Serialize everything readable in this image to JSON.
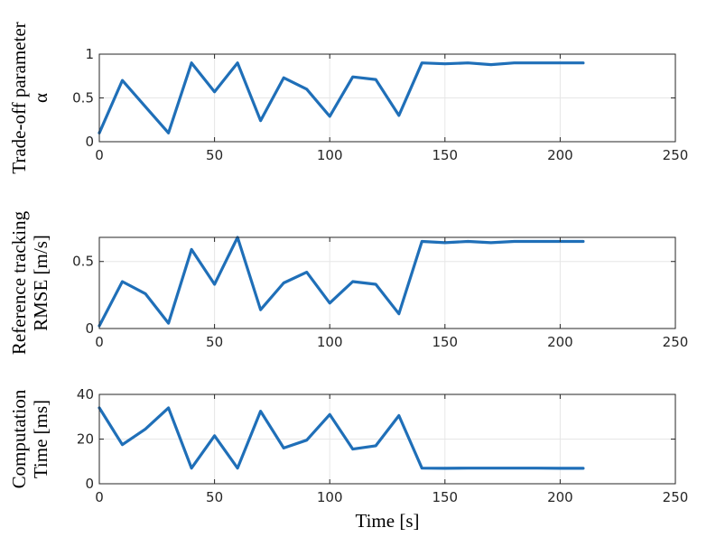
{
  "chart_data": [
    {
      "type": "line",
      "ylabel_lines": [
        "Trade-off parameter",
        "α"
      ],
      "xlabel": "",
      "xlim": [
        0,
        250
      ],
      "ylim": [
        0,
        1
      ],
      "xticks": [
        0,
        50,
        100,
        150,
        200,
        250
      ],
      "yticks": [
        0,
        0.5,
        1
      ],
      "ytick_labels": [
        "0",
        "0.5",
        "1"
      ],
      "grid": true,
      "color": "#1f6fb8",
      "x": [
        0,
        10,
        20,
        30,
        40,
        50,
        60,
        70,
        80,
        90,
        100,
        110,
        120,
        130,
        140,
        150,
        160,
        170,
        180,
        190,
        200,
        210
      ],
      "values": [
        0.1,
        0.7,
        0.4,
        0.1,
        0.9,
        0.57,
        0.9,
        0.24,
        0.73,
        0.6,
        0.29,
        0.74,
        0.71,
        0.3,
        0.9,
        0.89,
        0.9,
        0.88,
        0.9,
        0.9,
        0.9,
        0.9
      ]
    },
    {
      "type": "line",
      "ylabel_lines": [
        "Reference tracking",
        "RMSE [m/s]"
      ],
      "xlabel": "",
      "xlim": [
        0,
        250
      ],
      "ylim": [
        0,
        0.68
      ],
      "xticks": [
        0,
        50,
        100,
        150,
        200,
        250
      ],
      "yticks": [
        0,
        0.5
      ],
      "ytick_labels": [
        "0",
        "0.5"
      ],
      "grid": true,
      "color": "#1f6fb8",
      "x": [
        0,
        10,
        20,
        30,
        40,
        50,
        60,
        70,
        80,
        90,
        100,
        110,
        120,
        130,
        140,
        150,
        160,
        170,
        180,
        190,
        200,
        210
      ],
      "values": [
        0.02,
        0.35,
        0.26,
        0.04,
        0.59,
        0.33,
        0.68,
        0.14,
        0.34,
        0.42,
        0.19,
        0.35,
        0.33,
        0.11,
        0.65,
        0.64,
        0.65,
        0.64,
        0.65,
        0.65,
        0.65,
        0.65
      ]
    },
    {
      "type": "line",
      "ylabel_lines": [
        "Computation",
        "Time [ms]"
      ],
      "xlabel": "Time [s]",
      "xlim": [
        0,
        250
      ],
      "ylim": [
        0,
        40
      ],
      "xticks": [
        0,
        50,
        100,
        150,
        200,
        250
      ],
      "yticks": [
        0,
        20,
        40
      ],
      "ytick_labels": [
        "0",
        "20",
        "40"
      ],
      "grid": true,
      "color": "#1f6fb8",
      "x": [
        0,
        10,
        20,
        30,
        40,
        50,
        60,
        70,
        80,
        90,
        100,
        110,
        120,
        130,
        140,
        150,
        160,
        170,
        180,
        190,
        200,
        210
      ],
      "values": [
        34,
        17.5,
        24.5,
        34,
        7,
        21.5,
        7,
        32.5,
        16,
        19.5,
        31,
        15.5,
        17,
        30.5,
        7,
        6.9,
        7,
        7,
        7,
        7,
        6.9,
        6.9
      ]
    }
  ]
}
